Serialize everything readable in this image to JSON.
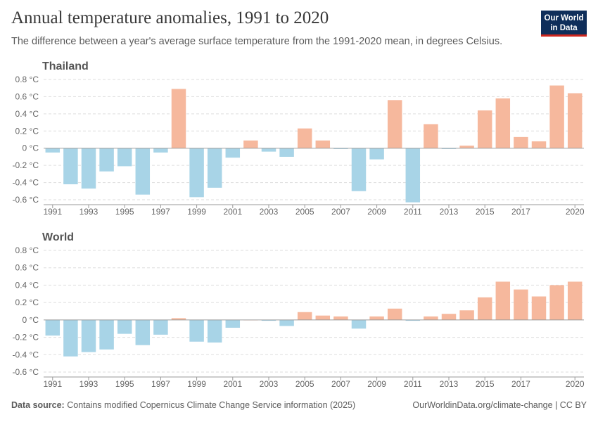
{
  "header": {
    "title": "Annual temperature anomalies, 1991 to 2020",
    "subtitle": "The difference between a year's average surface temperature from the 1991-2020 mean, in degrees Celsius."
  },
  "logo": {
    "line1": "Our World",
    "line2": "in Data"
  },
  "footer": {
    "source_label": "Data source:",
    "source_text": "Contains modified Copernicus Climate Change Service information (2025)",
    "link_text": "OurWorldinData.org/climate-change",
    "license": "| CC BY"
  },
  "colors": {
    "positive": "#f6b89d",
    "negative": "#a8d4e7",
    "grid": "#dddddd",
    "axis_text": "#666666",
    "panel_title": "#555555"
  },
  "chart_data": [
    {
      "type": "bar",
      "title": "Thailand",
      "x": [
        1991,
        1992,
        1993,
        1994,
        1995,
        1996,
        1997,
        1998,
        1999,
        2000,
        2001,
        2002,
        2003,
        2004,
        2005,
        2006,
        2007,
        2008,
        2009,
        2010,
        2011,
        2012,
        2013,
        2014,
        2015,
        2016,
        2017,
        2018,
        2019,
        2020
      ],
      "values": [
        -0.05,
        -0.42,
        -0.47,
        -0.27,
        -0.21,
        -0.54,
        -0.05,
        0.69,
        -0.57,
        -0.46,
        -0.11,
        0.09,
        -0.04,
        -0.1,
        0.23,
        0.09,
        -0.01,
        -0.5,
        -0.13,
        0.56,
        -0.63,
        0.28,
        -0.01,
        0.03,
        0.44,
        0.58,
        0.13,
        0.08,
        0.73,
        0.64
      ],
      "ylim": [
        -0.6,
        0.8
      ],
      "yticks": [
        -0.6,
        -0.4,
        -0.2,
        0,
        0.2,
        0.4,
        0.6,
        0.8
      ],
      "ytick_labels": [
        "-0.6 °C",
        "-0.4 °C",
        "-0.2 °C",
        "0 °C",
        "0.2 °C",
        "0.4 °C",
        "0.6 °C",
        "0.8 °C"
      ],
      "xtick_labels": [
        "1991",
        "1993",
        "1995",
        "1997",
        "1999",
        "2001",
        "2003",
        "2005",
        "2007",
        "2009",
        "2011",
        "2013",
        "2015",
        "2017",
        "2020"
      ],
      "grid": true
    },
    {
      "type": "bar",
      "title": "World",
      "x": [
        1991,
        1992,
        1993,
        1994,
        1995,
        1996,
        1997,
        1998,
        1999,
        2000,
        2001,
        2002,
        2003,
        2004,
        2005,
        2006,
        2007,
        2008,
        2009,
        2010,
        2011,
        2012,
        2013,
        2014,
        2015,
        2016,
        2017,
        2018,
        2019,
        2020
      ],
      "values": [
        -0.18,
        -0.42,
        -0.37,
        -0.34,
        -0.16,
        -0.29,
        -0.17,
        0.02,
        -0.25,
        -0.26,
        -0.09,
        0.0,
        -0.01,
        -0.07,
        0.09,
        0.05,
        0.04,
        -0.1,
        0.04,
        0.13,
        -0.01,
        0.04,
        0.07,
        0.11,
        0.26,
        0.44,
        0.35,
        0.27,
        0.4,
        0.44
      ],
      "ylim": [
        -0.6,
        0.8
      ],
      "yticks": [
        -0.6,
        -0.4,
        -0.2,
        0,
        0.2,
        0.4,
        0.6,
        0.8
      ],
      "ytick_labels": [
        "-0.6 °C",
        "-0.4 °C",
        "-0.2 °C",
        "0 °C",
        "0.2 °C",
        "0.4 °C",
        "0.6 °C",
        "0.8 °C"
      ],
      "xtick_labels": [
        "1991",
        "1993",
        "1995",
        "1997",
        "1999",
        "2001",
        "2003",
        "2005",
        "2007",
        "2009",
        "2011",
        "2013",
        "2015",
        "2017",
        "2020"
      ],
      "grid": true
    }
  ]
}
